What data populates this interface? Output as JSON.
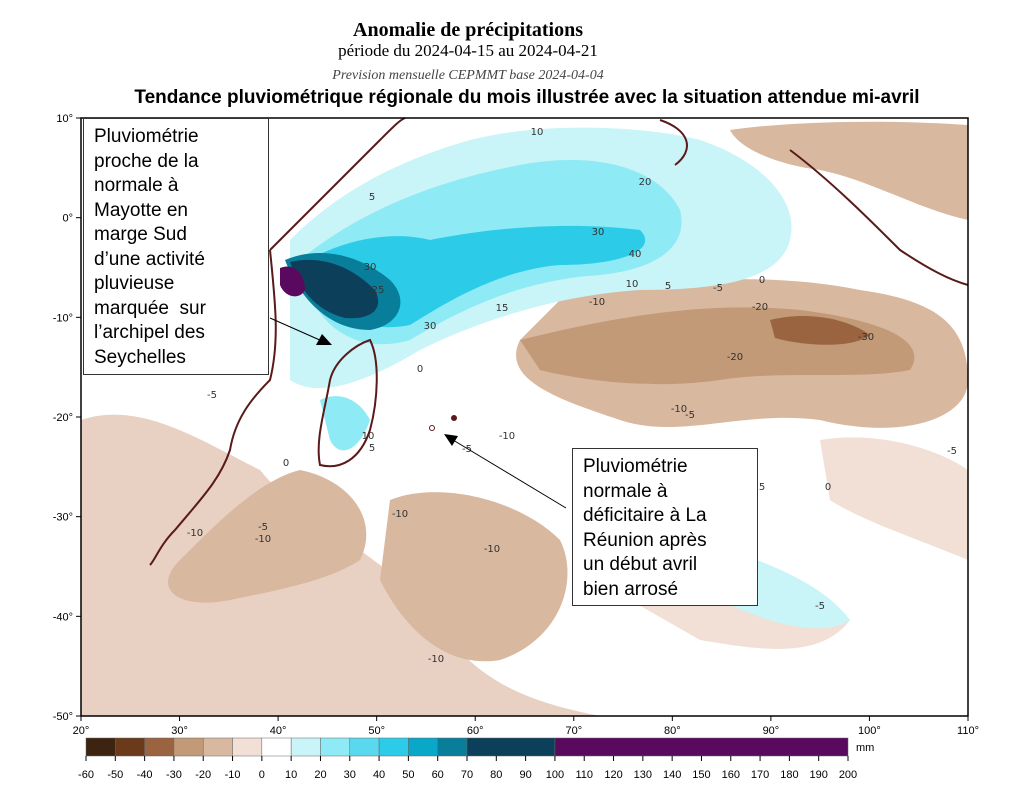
{
  "header": {
    "title": "Anomalie de précipitations",
    "period": "période du 2024-04-15 au 2024-04-21",
    "source": "Prevision mensuelle CEPMMT base 2024-04-04",
    "headline": "Tendance pluviométrique régionale du mois illustrée avec la situation attendue mi-avril"
  },
  "map": {
    "xlim": [
      20,
      110
    ],
    "ylim": [
      -50,
      10
    ],
    "xticks": [
      {
        "value": 20,
        "label": "20°"
      },
      {
        "value": 30,
        "label": "30°"
      },
      {
        "value": 40,
        "label": "40°"
      },
      {
        "value": 50,
        "label": "50°"
      },
      {
        "value": 60,
        "label": "60°"
      },
      {
        "value": 70,
        "label": "70°"
      },
      {
        "value": 80,
        "label": "80°"
      },
      {
        "value": 90,
        "label": "90°"
      },
      {
        "value": 100,
        "label": "100°"
      },
      {
        "value": 110,
        "label": "110°"
      }
    ],
    "yticks": [
      {
        "value": 10,
        "label": "10°"
      },
      {
        "value": 0,
        "label": "0°"
      },
      {
        "value": -10,
        "label": "-10°"
      },
      {
        "value": -20,
        "label": "-20°"
      },
      {
        "value": -30,
        "label": "-30°"
      },
      {
        "value": -40,
        "label": "-40°"
      },
      {
        "value": -50,
        "label": "-50°"
      }
    ],
    "contour_labels": [
      10,
      20,
      30,
      40,
      30,
      25,
      15,
      10,
      5,
      -5,
      0,
      -20,
      -30,
      -20,
      -10,
      -5,
      -10,
      -5,
      -5,
      0,
      5,
      -10,
      -10,
      -10,
      -10,
      -5,
      -5,
      -10,
      0,
      5,
      -5,
      10,
      5,
      30,
      -10,
      0
    ]
  },
  "colorbar": {
    "bounds": [
      -60,
      -50,
      -40,
      -30,
      -20,
      -10,
      0,
      10,
      20,
      30,
      40,
      50,
      60,
      70,
      100,
      200
    ],
    "colors": [
      "#3d2410",
      "#6b3a1a",
      "#9a6440",
      "#c29a78",
      "#d9b8a0",
      "#f2e0d6",
      "#ffffff",
      "#c9f4f8",
      "#8eeaf5",
      "#5ad8ee",
      "#2ccce8",
      "#0aa8c8",
      "#087e9a",
      "#0b3f5a",
      "#5a0a5e"
    ],
    "ticks": [
      -60,
      -50,
      -40,
      -30,
      -20,
      -10,
      0,
      10,
      20,
      30,
      40,
      50,
      60,
      70,
      80,
      90,
      100,
      110,
      120,
      130,
      140,
      150,
      160,
      170,
      180,
      190,
      200
    ],
    "unit": "mm"
  },
  "annotations": [
    {
      "lines": [
        "Pluviométrie",
        "proche de la",
        "normale à",
        "Mayotte en",
        "marge Sud",
        "d’une activité",
        "pluvieuse",
        "marquée  sur",
        "l’archipel des",
        "Seychelles"
      ]
    },
    {
      "lines": [
        "Pluviométrie",
        "normale à",
        "déficitaire à La",
        "Réunion après",
        "un début avril",
        "bien arrosé"
      ]
    }
  ]
}
